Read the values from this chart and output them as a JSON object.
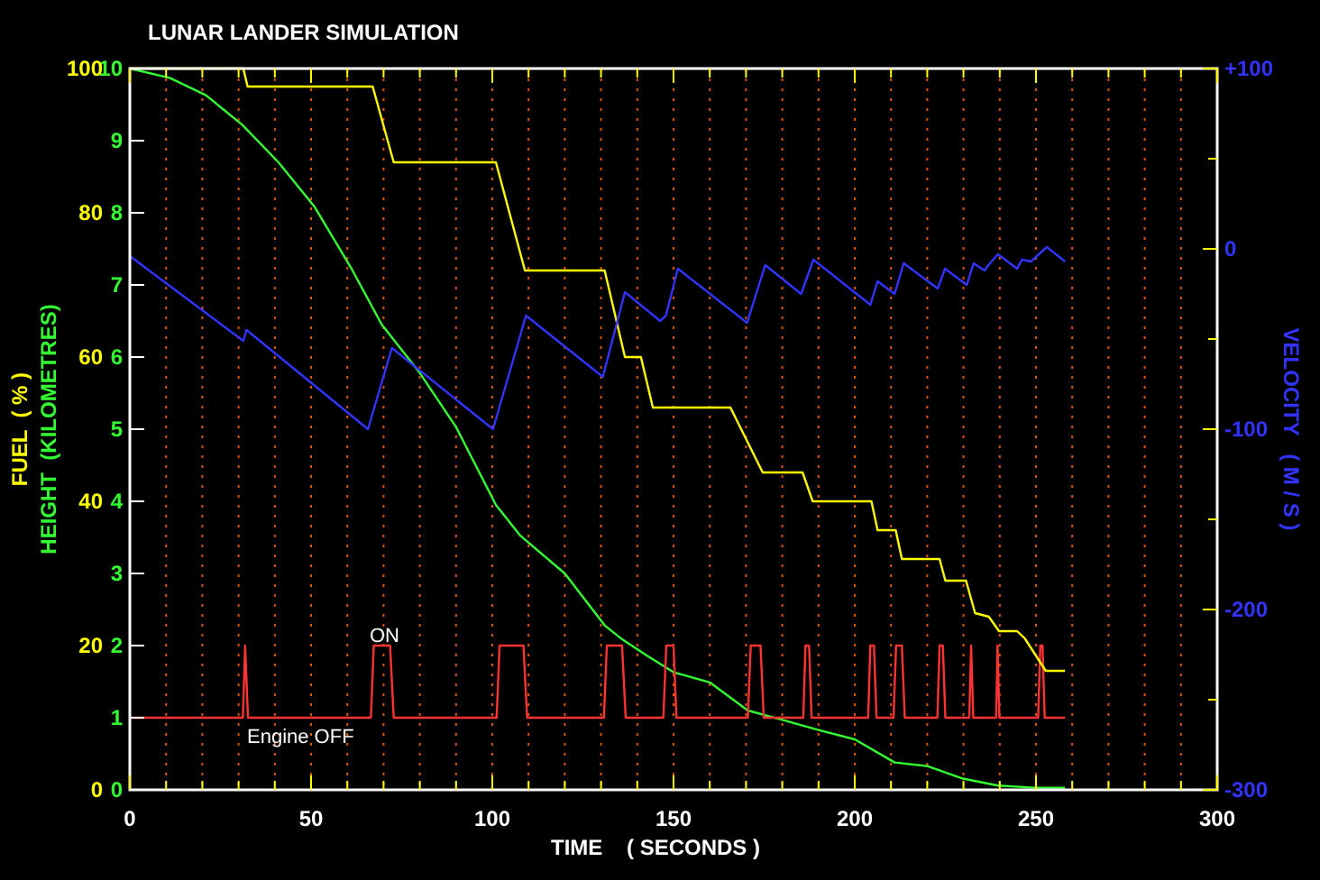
{
  "chart_data": {
    "type": "line",
    "title": "LUNAR LANDER SIMULATION",
    "xlabel": "TIME    ( SECONDS )",
    "ylabel": "HEIGHT  (KILOMETRES)",
    "y2label": "VELOCITY   ( M / S )",
    "y3label": "FUEL  ( % )",
    "xlim": [
      0,
      300
    ],
    "xticks": [
      0,
      {
        "value": 10,
        "label": null
      },
      {
        "value": 20,
        "label": null
      },
      {
        "value": 30,
        "label": null
      },
      {
        "value": 40,
        "label": null
      },
      50,
      {
        "value": 60,
        "label": null
      },
      {
        "value": 70,
        "label": null
      },
      {
        "value": 80,
        "label": null
      },
      {
        "value": 90,
        "label": null
      },
      100,
      {
        "value": 110,
        "label": null
      },
      {
        "value": 120,
        "label": null
      },
      {
        "value": 130,
        "label": null
      },
      {
        "value": 140,
        "label": null
      },
      150,
      {
        "value": 160,
        "label": null
      },
      {
        "value": 170,
        "label": null
      },
      {
        "value": 180,
        "label": null
      },
      {
        "value": 190,
        "label": null
      },
      200,
      {
        "value": 210,
        "label": null
      },
      {
        "value": 220,
        "label": null
      },
      {
        "value": 230,
        "label": null
      },
      {
        "value": 240,
        "label": null
      },
      250,
      {
        "value": 260,
        "label": null
      },
      {
        "value": 270,
        "label": null
      },
      {
        "value": 280,
        "label": null
      },
      {
        "value": 290,
        "label": null
      },
      300
    ],
    "ylim": [
      0,
      10
    ],
    "yticks": [
      0,
      1,
      2,
      3,
      4,
      5,
      6,
      7,
      8,
      9,
      10
    ],
    "y2lim": [
      -300,
      100
    ],
    "y2ticks": [
      -300,
      {
        "value": -250,
        "label": null
      },
      -200,
      {
        "value": -150,
        "label": null
      },
      -100,
      {
        "value": -50,
        "label": null
      },
      0,
      {
        "value": 50,
        "label": null
      },
      {
        "value": 100,
        "label": "+100"
      }
    ],
    "y3lim": [
      0,
      100
    ],
    "y3ticks": [
      0,
      20,
      40,
      60,
      80,
      100
    ],
    "grid": "x",
    "marker": "none",
    "line_style": "solid",
    "series": [
      {
        "color": "#33ff33",
        "axis": "y",
        "x": [
          0,
          11,
          21,
          31,
          41,
          51,
          61,
          69.5,
          80,
          90,
          101,
          107.6,
          120,
          131,
          136,
          143,
          150,
          160,
          170.5,
          180,
          190,
          200,
          211,
          220,
          229.5,
          239.5,
          249.5,
          258
        ],
        "values": [
          10,
          9.87,
          9.63,
          9.22,
          8.7,
          8.08,
          7.24,
          6.45,
          5.78,
          5.03,
          3.95,
          3.53,
          3.0,
          2.28,
          2.08,
          1.85,
          1.63,
          1.49,
          1.1,
          0.97,
          0.83,
          0.7,
          0.38,
          0.33,
          0.16,
          0.06,
          0.03,
          0.03
        ]
      },
      {
        "color": "#ff3333",
        "axis": "y",
        "x": [
          0,
          31.2,
          31.8,
          32.6,
          66.5,
          67.3,
          71.8,
          72.8,
          101.2,
          102,
          108.6,
          109.6,
          130.8,
          131.6,
          135.8,
          136.8,
          147.2,
          148,
          150,
          150.8,
          170.5,
          171.3,
          174,
          174.9,
          185.8,
          186.4,
          187.4,
          188.1,
          203.7,
          204.3,
          205.3,
          206,
          210.7,
          211.4,
          213,
          213.8,
          222.8,
          223.4,
          224.3,
          225,
          231.6,
          232.1,
          232.7,
          239,
          239.4,
          239.9,
          250.6,
          251.2,
          251.8,
          252.4,
          258
        ],
        "values": [
          1,
          1,
          2,
          1,
          1,
          2,
          2,
          1,
          1,
          2,
          2,
          1,
          1,
          2,
          2,
          1,
          1,
          2,
          2,
          1,
          1,
          2,
          2,
          1,
          1,
          2,
          2,
          1,
          1,
          2,
          2,
          1,
          1,
          2,
          2,
          1,
          1,
          2,
          2,
          1,
          1,
          2,
          1,
          1,
          2,
          1,
          1,
          2,
          2,
          1,
          1
        ]
      },
      {
        "color": "#ffff00",
        "axis": "y3",
        "x": [
          0,
          31.3,
          32.5,
          67,
          72.8,
          101,
          109,
          131,
          136.6,
          141,
          144.3,
          165.7,
          174.6,
          185.6,
          188.4,
          204.6,
          206.3,
          211.3,
          213,
          223.4,
          225,
          230.7,
          233.2,
          237,
          239.8,
          244.8,
          246.9,
          252.7,
          258
        ],
        "values": [
          100,
          100,
          97.5,
          97.5,
          87,
          87,
          72,
          72,
          60,
          60,
          53,
          53,
          44,
          44,
          40,
          40,
          36,
          36,
          32,
          32,
          29,
          29,
          24.5,
          24,
          22,
          22,
          21,
          16.5,
          16.5
        ]
      },
      {
        "color": "#3333ff",
        "axis": "y2",
        "x": [
          0,
          31.3,
          32.2,
          65.7,
          72.3,
          100.2,
          109.3,
          130.5,
          136.6,
          143.3,
          146.3,
          147.9,
          151.2,
          170.3,
          175.3,
          185.2,
          188.6,
          204.3,
          206.3,
          211,
          213.5,
          222.9,
          224.9,
          230.9,
          232.8,
          235.8,
          237.3,
          239.5,
          244.8,
          246.1,
          248.6,
          253,
          258
        ],
        "values": [
          -4,
          -51,
          -45,
          -100,
          -55,
          -100,
          -37,
          -71,
          -24,
          -35,
          -40,
          -37,
          -11,
          -41,
          -9,
          -25,
          -6,
          -31,
          -18,
          -25,
          -8,
          -22,
          -11,
          -20,
          -8,
          -12,
          -8,
          -3,
          -11,
          -6,
          -7,
          1,
          -7
        ]
      }
    ],
    "annotations": [
      "ON",
      "Engine OFF"
    ]
  }
}
